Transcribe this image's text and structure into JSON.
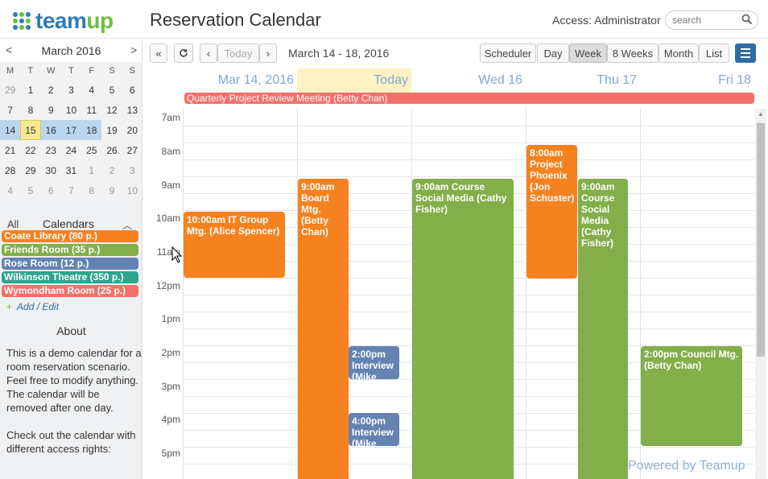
{
  "header": {
    "logo_prefix": "team",
    "logo_suffix": "up",
    "title": "Reservation Calendar",
    "access": "Access: Administrator",
    "search_placeholder": "search"
  },
  "mini_calendar": {
    "month_label": "March 2016",
    "prev": "<",
    "next": ">",
    "weekdays": [
      "M",
      "T",
      "W",
      "T",
      "F",
      "S",
      "S"
    ],
    "weeks": [
      [
        "29",
        "1",
        "2",
        "3",
        "4",
        "5",
        "6"
      ],
      [
        "7",
        "8",
        "9",
        "10",
        "11",
        "12",
        "13"
      ],
      [
        "14",
        "15",
        "16",
        "17",
        "18",
        "19",
        "20"
      ],
      [
        "21",
        "22",
        "23",
        "24",
        "25",
        "26",
        "27"
      ],
      [
        "28",
        "29",
        "30",
        "31",
        "1",
        "2",
        "3"
      ],
      [
        "4",
        "5",
        "6",
        "7",
        "8",
        "9",
        "10"
      ]
    ]
  },
  "calendars_panel": {
    "all_label": "All",
    "title": "Calendars",
    "items": [
      {
        "label": "Coate Library (80 p.)",
        "color": "#f5821f"
      },
      {
        "label": "Friends Room (35 p.)",
        "color": "#83ae49"
      },
      {
        "label": "Rose Room (12 p.)",
        "color": "#6483b3"
      },
      {
        "label": "Wilkinson Theatre (350 p.)",
        "color": "#2da58e"
      },
      {
        "label": "Wymondham Room (25 p.)",
        "color": "#f37069"
      }
    ],
    "add_edit": "Add / Edit"
  },
  "about": {
    "title": "About",
    "p1": "This is a demo calendar for a room reservation scenario. Feel free to modify anything. The calendar will be removed after one day.",
    "p2": "Check out the calendar with different access rights:"
  },
  "toolbar": {
    "today": "Today",
    "range": "March 14 - 18, 2016",
    "views": [
      "Scheduler",
      "Day",
      "Week",
      "8 Weeks",
      "Month",
      "List"
    ],
    "active_view": "Week"
  },
  "week": {
    "columns": [
      "Mar 14, 2016",
      "Today",
      "Wed 16",
      "Thu 17",
      "Fri 18"
    ],
    "allday_event": "Quarterly Project Review Meeting (Betty Chan)",
    "hours": [
      "7am",
      "8am",
      "9am",
      "10am",
      "11am",
      "12pm",
      "1pm",
      "2pm",
      "3pm",
      "4pm",
      "5pm"
    ],
    "events": {
      "it_group": "10:00am IT Group Mtg. (Alice Spencer)",
      "board": "9:00am Board Mtg. (Betty Chan)",
      "interview1": "2:00pm Interview (Mike",
      "interview2": "4:00pm Interview (Mike",
      "course_wed": "9:00am Course Social Media (Cathy Fisher)",
      "phoenix": "8:00am Project Phoenix (Jon Schuster)",
      "course_thu": "9:00am Course Social Media (Cathy Fisher)",
      "council": "2:00pm Council Mtg. (Betty Chan)"
    }
  },
  "footer": {
    "powered": "Powered by Teamup"
  },
  "colors": {
    "brand_blue": "#2e7bb5",
    "brand_green": "#6bbf3d"
  }
}
